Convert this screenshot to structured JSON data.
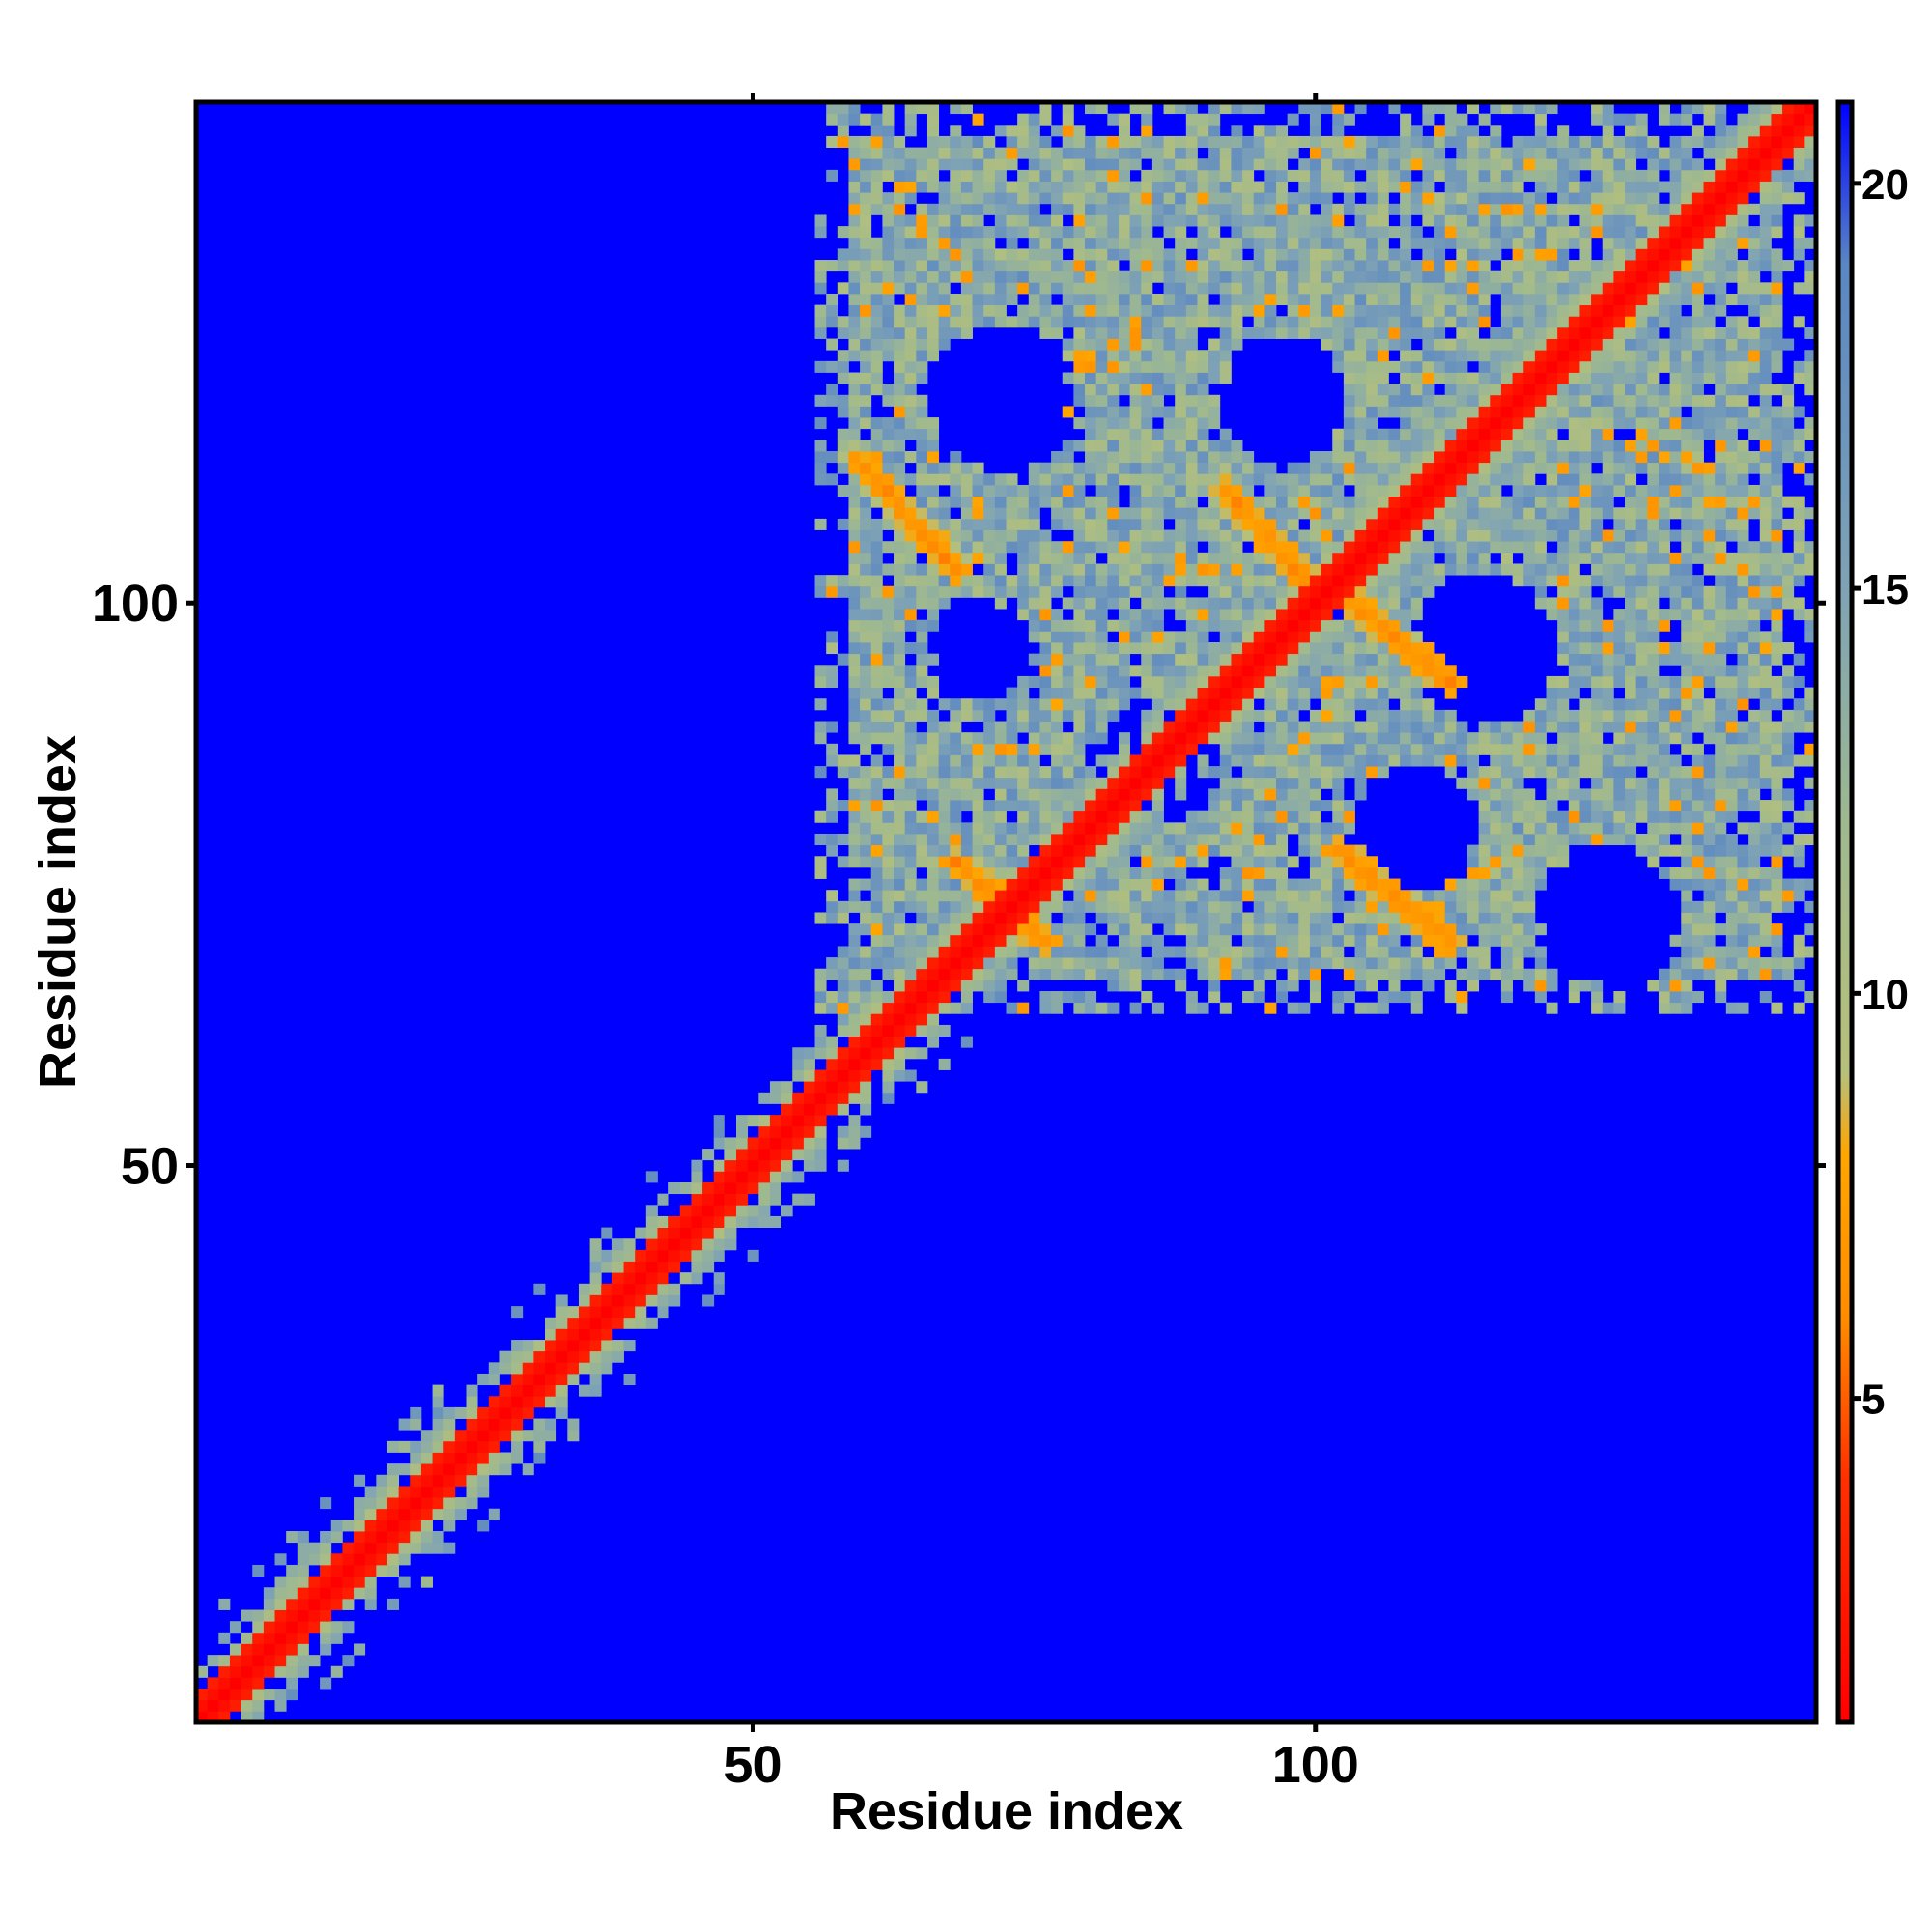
{
  "chart_data": {
    "type": "heatmap",
    "title": "",
    "xlabel": "Residue index",
    "ylabel": "Residue index",
    "x_range": [
      1,
      144
    ],
    "y_range": [
      1,
      144
    ],
    "xticks": [
      50,
      100
    ],
    "yticks": [
      50,
      100
    ],
    "xtick_labels": [
      "50",
      "100"
    ],
    "ytick_labels": [
      "50",
      "100"
    ],
    "colorbar": {
      "range": [
        1,
        21
      ],
      "ticks": [
        5,
        10,
        15,
        20
      ],
      "tick_labels": [
        "5",
        "10",
        "15",
        "20"
      ],
      "stops": [
        {
          "value": 1,
          "color": "#ff0000"
        },
        {
          "value": 4,
          "color": "#ff3000"
        },
        {
          "value": 6,
          "color": "#ff8c00"
        },
        {
          "value": 8,
          "color": "#ffa500"
        },
        {
          "value": 9,
          "color": "#b7c07a"
        },
        {
          "value": 12,
          "color": "#9fb98f"
        },
        {
          "value": 15,
          "color": "#7fa3b5"
        },
        {
          "value": 19,
          "color": "#5a86c2"
        },
        {
          "value": 21,
          "color": "#0000ff"
        }
      ]
    },
    "background_value": 21,
    "features": [
      {
        "kind": "diagonal",
        "description": "main diagonal contacts",
        "from": 1,
        "to": 144,
        "core_width": 2,
        "halo_width": 5
      },
      {
        "kind": "helix-pair",
        "from": [
          60,
          112
        ],
        "to": [
          68,
          103
        ],
        "width": 1.4
      },
      {
        "kind": "helix-pair",
        "from": [
          92,
          110
        ],
        "to": [
          100,
          101
        ],
        "width": 1.4
      },
      {
        "kind": "helix-pair",
        "from": [
          102,
          101
        ],
        "to": [
          112,
          93
        ],
        "width": 1.4
      },
      {
        "kind": "helix-pair",
        "from": [
          102,
          78
        ],
        "to": [
          112,
          70
        ],
        "width": 1.4
      },
      {
        "kind": "helix-pair",
        "from": [
          68,
          77
        ],
        "to": [
          76,
          70
        ],
        "width": 1.4
      },
      {
        "kind": "region",
        "x": [
          56,
          144
        ],
        "y": [
          64,
          144
        ],
        "description": "contact envelope with circular voids"
      },
      {
        "kind": "void",
        "center": [
          72,
          118
        ],
        "radius": 6
      },
      {
        "kind": "void",
        "center": [
          97,
          118
        ],
        "radius": 5
      },
      {
        "kind": "void",
        "center": [
          115,
          96
        ],
        "radius": 6
      },
      {
        "kind": "void",
        "center": [
          86,
          86
        ],
        "radius": 5
      },
      {
        "kind": "void",
        "center": [
          109,
          80
        ],
        "radius": 5
      },
      {
        "kind": "void",
        "center": [
          126,
          72
        ],
        "radius": 6
      },
      {
        "kind": "void",
        "center": [
          70,
          96
        ],
        "radius": 4
      }
    ]
  }
}
